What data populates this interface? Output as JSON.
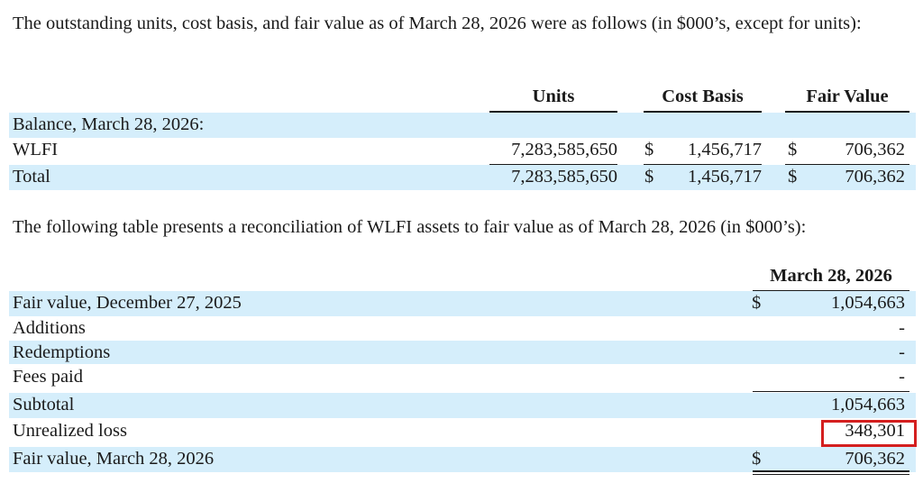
{
  "intro_paragraph": "The outstanding units, cost basis, and fair value as of March 28, 2026 were as follows (in $000’s, except for units):",
  "units_table": {
    "headers": {
      "units": "Units",
      "cost_basis": "Cost Basis",
      "fair_value": "Fair Value"
    },
    "section_label": "Balance, March 28, 2026:",
    "rows": [
      {
        "label": "WLFI",
        "units": "7,283,585,650",
        "cost_currency": "$",
        "cost_basis": "1,456,717",
        "fair_currency": "$",
        "fair_value": "706,362"
      },
      {
        "label": "Total",
        "units": "7,283,585,650",
        "cost_currency": "$",
        "cost_basis": "1,456,717",
        "fair_currency": "$",
        "fair_value": "706,362"
      }
    ]
  },
  "reconciliation_paragraph": "The following table presents a reconciliation of WLFI assets to fair value as of March 28, 2026 (in $000’s):",
  "reconciliation_table": {
    "column_header": "March 28, 2026",
    "rows": [
      {
        "label": "Fair value, December 27, 2025",
        "currency": "$",
        "value": "1,054,663"
      },
      {
        "label": "Additions",
        "currency": "",
        "value": "-"
      },
      {
        "label": "Redemptions",
        "currency": "",
        "value": "-"
      },
      {
        "label": "Fees paid",
        "currency": "",
        "value": "-"
      },
      {
        "label": "Subtotal",
        "currency": "",
        "value": "1,054,663"
      },
      {
        "label": "Unrealized loss",
        "currency": "",
        "value": "348,301"
      },
      {
        "label": "Fair value, March 28, 2026",
        "currency": "$",
        "value": "706,362"
      }
    ]
  },
  "colors": {
    "row_shade": "#d5eefb",
    "highlight_border": "#d41f1f",
    "text": "#1a1a1a"
  }
}
